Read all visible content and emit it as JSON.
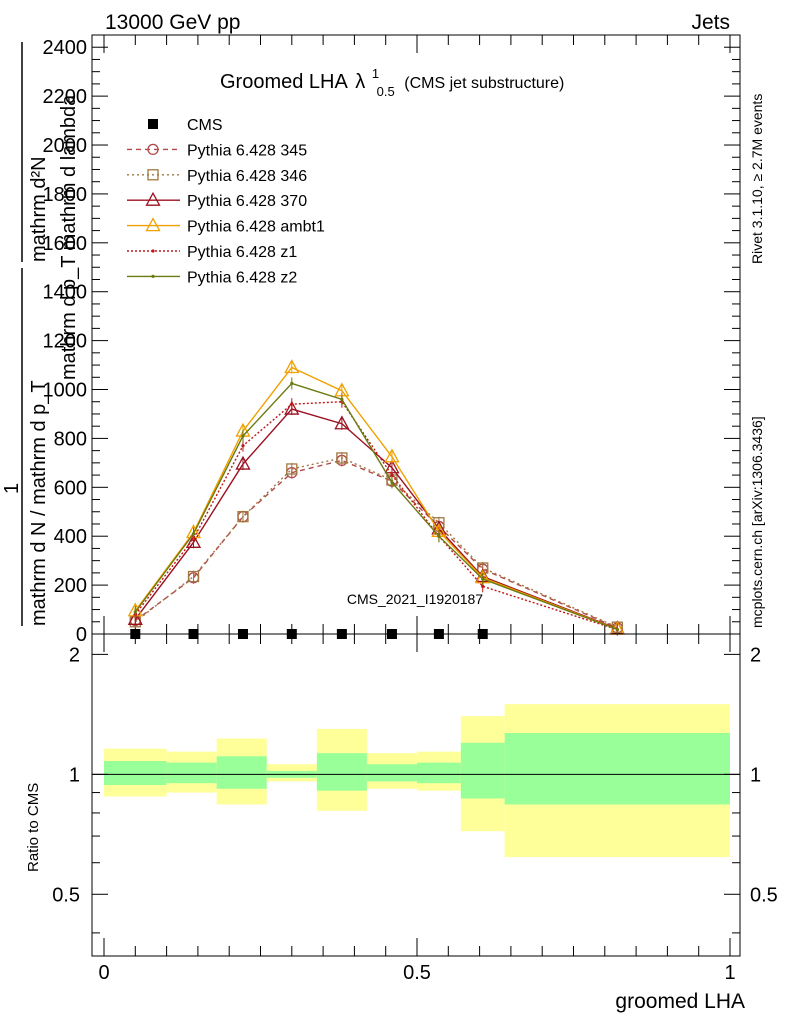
{
  "header": {
    "energy_label": "13000 GeV pp",
    "process_label": "Jets",
    "title_main": "Groomed LHA",
    "title_lambda": "λ",
    "title_sup": "1",
    "title_sub": "0.5",
    "title_note": "(CMS jet substructure)",
    "ylabel_top": "mathrm d²N",
    "ylabel_top_denominator": "mathrm d p_T mathrm d lambda",
    "ylabel_frac_num": "1",
    "ylabel_frac_den": "mathrm d N / mathrm d p_T",
    "analysis_id": "CMS_2021_I1920187",
    "side_rivet": "Rivet 3.1.10, ≥ 2.7M events",
    "side_mcplots": "mcplots.cern.ch [arXiv:1306.3436]",
    "xlabel": "groomed LHA",
    "ratio_ylabel": "Ratio to CMS"
  },
  "chart_data": [
    {
      "type": "line",
      "panel": "main",
      "xlim": [
        0,
        1
      ],
      "ylim": [
        0,
        2450
      ],
      "x_ticks": [
        "0",
        "0.5",
        "1"
      ],
      "y_ticks": [
        "0",
        "200",
        "400",
        "600",
        "800",
        "1000",
        "1200",
        "1400",
        "1600",
        "1800",
        "2000",
        "2200",
        "2400"
      ],
      "x": [
        0.05,
        0.143,
        0.222,
        0.3,
        0.38,
        0.46,
        0.535,
        0.605,
        0.82
      ],
      "data_series": {
        "name": "CMS",
        "x": [
          0.05,
          0.143,
          0.222,
          0.3,
          0.38,
          0.46,
          0.535,
          0.605
        ],
        "values": [
          0,
          0,
          0,
          0,
          0,
          0,
          0,
          0
        ]
      },
      "series": [
        {
          "name": "Pythia 6.428 345",
          "color": "#b24848",
          "dash": "5,4",
          "marker": "circle",
          "values": [
            55,
            230,
            480,
            660,
            710,
            625,
            440,
            265,
            25
          ]
        },
        {
          "name": "Pythia 6.428 346",
          "color": "#a07840",
          "dash": "2,3",
          "marker": "square",
          "values": [
            50,
            235,
            480,
            675,
            720,
            630,
            455,
            270,
            28
          ]
        },
        {
          "name": "Pythia 6.428 370",
          "color": "#9b1020",
          "dash": "",
          "marker": "triangle",
          "values": [
            60,
            375,
            695,
            920,
            860,
            680,
            430,
            235,
            22
          ]
        },
        {
          "name": "Pythia 6.428 ambt1",
          "color": "#f0a000",
          "dash": "",
          "marker": "triangle",
          "values": [
            95,
            415,
            830,
            1090,
            995,
            725,
            420,
            230,
            20
          ]
        },
        {
          "name": "Pythia 6.428 z1",
          "color": "#c01818",
          "dash": "2,2",
          "marker": "dot",
          "values": [
            80,
            390,
            770,
            940,
            950,
            650,
            400,
            195,
            18
          ]
        },
        {
          "name": "Pythia 6.428 z2",
          "color": "#6b7a10",
          "dash": "",
          "marker": "dot",
          "values": [
            90,
            410,
            810,
            1025,
            960,
            620,
            400,
            225,
            19
          ]
        }
      ]
    },
    {
      "type": "area",
      "panel": "ratio",
      "ylim": [
        0.35,
        2.25
      ],
      "y_ticks": [
        "0.5",
        "1",
        "2"
      ],
      "bins": [
        [
          0.0,
          0.1
        ],
        [
          0.1,
          0.18
        ],
        [
          0.18,
          0.26
        ],
        [
          0.26,
          0.34
        ],
        [
          0.34,
          0.42
        ],
        [
          0.42,
          0.5
        ],
        [
          0.5,
          0.57
        ],
        [
          0.57,
          0.64
        ],
        [
          0.64,
          1.0
        ]
      ],
      "band_inner": [
        [
          0.94,
          1.08
        ],
        [
          0.95,
          1.07
        ],
        [
          0.92,
          1.11
        ],
        [
          0.98,
          1.02
        ],
        [
          0.91,
          1.13
        ],
        [
          0.96,
          1.06
        ],
        [
          0.95,
          1.07
        ],
        [
          0.87,
          1.2
        ],
        [
          0.84,
          1.27
        ]
      ],
      "band_outer": [
        [
          0.88,
          1.16
        ],
        [
          0.9,
          1.14
        ],
        [
          0.84,
          1.23
        ],
        [
          0.96,
          1.06
        ],
        [
          0.81,
          1.3
        ],
        [
          0.92,
          1.13
        ],
        [
          0.91,
          1.14
        ],
        [
          0.72,
          1.4
        ],
        [
          0.62,
          1.5
        ]
      ],
      "colors": {
        "inner": "#99ff99",
        "outer": "#ffff99"
      }
    }
  ]
}
